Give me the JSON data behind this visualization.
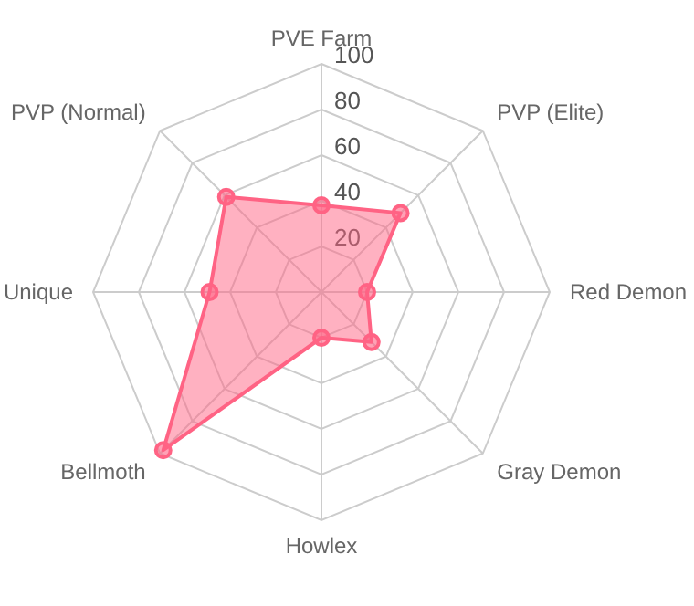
{
  "chart_data": {
    "type": "radar",
    "categories": [
      "PVE Farm",
      "PVP (Elite)",
      "Red Demon",
      "Gray Demon",
      "Howlex",
      "Bellmoth",
      "Unique",
      "PVP (Normal)"
    ],
    "series": [
      {
        "color": "#ff6384",
        "values": [
          38,
          49,
          20,
          31,
          20,
          98,
          49,
          59
        ]
      }
    ],
    "ylim": [
      0,
      100
    ],
    "yticks": [
      20,
      40,
      60,
      80,
      100
    ],
    "grid": true,
    "marker": "circle",
    "legend": false
  }
}
